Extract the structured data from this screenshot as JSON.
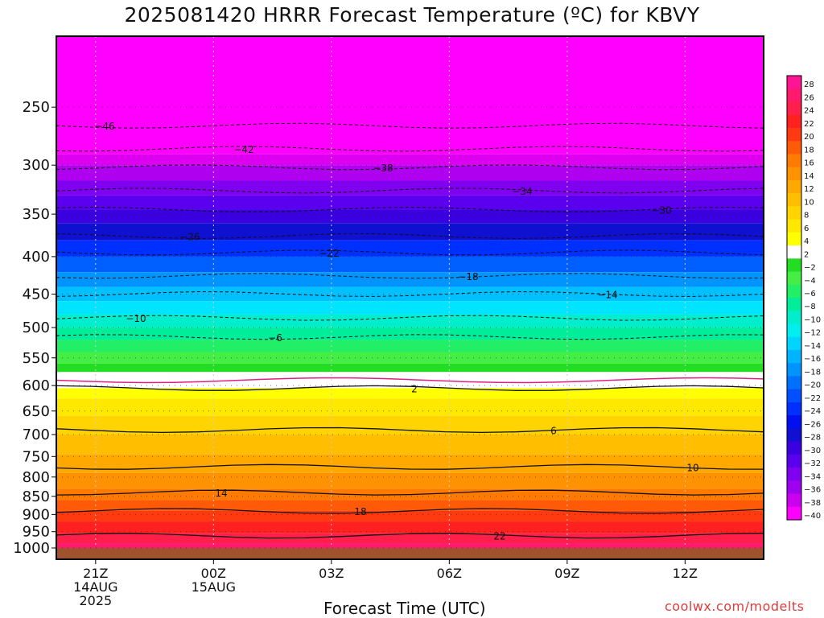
{
  "title": "2025081420 HRRR Forecast Temperature (ºC) for KBVY",
  "credit": "coolwx.com/modelts",
  "chart_data": {
    "type": "heatmap",
    "xlabel": "Forecast Time (UTC)",
    "ylabel": "",
    "y_ticks": [
      250,
      300,
      350,
      400,
      450,
      500,
      550,
      600,
      650,
      700,
      750,
      800,
      850,
      900,
      950,
      1000
    ],
    "y_range": [
      200,
      1000
    ],
    "x_ticks": [
      {
        "hour": 21,
        "lines": [
          "21Z",
          "14AUG",
          "2025"
        ]
      },
      {
        "hour": 24,
        "lines": [
          "00Z",
          "15AUG"
        ]
      },
      {
        "hour": 27,
        "lines": [
          "03Z"
        ]
      },
      {
        "hour": 30,
        "lines": [
          "06Z"
        ]
      },
      {
        "hour": 33,
        "lines": [
          "09Z"
        ]
      },
      {
        "hour": 36,
        "lines": [
          "12Z"
        ]
      }
    ],
    "x_range": [
      20,
      38
    ],
    "colorbar": [
      {
        "label": "28",
        "color": "#ff1493"
      },
      {
        "label": "26",
        "color": "#ff1a6e"
      },
      {
        "label": "24",
        "color": "#ff1f4a"
      },
      {
        "label": "22",
        "color": "#ff2020"
      },
      {
        "label": "20",
        "color": "#ff3a10"
      },
      {
        "label": "18",
        "color": "#ff5a08"
      },
      {
        "label": "16",
        "color": "#ff7a00"
      },
      {
        "label": "14",
        "color": "#ff9200"
      },
      {
        "label": "12",
        "color": "#ffa800"
      },
      {
        "label": "10",
        "color": "#ffbf00"
      },
      {
        "label": "8",
        "color": "#ffd400"
      },
      {
        "label": "6",
        "color": "#ffe800"
      },
      {
        "label": "4",
        "color": "#ffff00"
      },
      {
        "label": "2",
        "color": "#ffffff"
      },
      {
        "label": "−2",
        "color": "#22dd22"
      },
      {
        "label": "−4",
        "color": "#44ee44"
      },
      {
        "label": "−6",
        "color": "#22ee66"
      },
      {
        "label": "−8",
        "color": "#00ee99"
      },
      {
        "label": "−10",
        "color": "#00eecc"
      },
      {
        "label": "−12",
        "color": "#00eeee"
      },
      {
        "label": "−14",
        "color": "#00d4ff"
      },
      {
        "label": "−16",
        "color": "#00b4ff"
      },
      {
        "label": "−18",
        "color": "#0094ff"
      },
      {
        "label": "−20",
        "color": "#0070ff"
      },
      {
        "label": "−22",
        "color": "#0050ff"
      },
      {
        "label": "−24",
        "color": "#0030ff"
      },
      {
        "label": "−26",
        "color": "#0010f0"
      },
      {
        "label": "−28",
        "color": "#1010d0"
      },
      {
        "label": "−30",
        "color": "#3a00e0"
      },
      {
        "label": "−32",
        "color": "#5a00ee"
      },
      {
        "label": "−34",
        "color": "#8000f0"
      },
      {
        "label": "−36",
        "color": "#a000f0"
      },
      {
        "label": "−38",
        "color": "#cc00f0"
      },
      {
        "label": "−40",
        "color": "#ff00ff"
      }
    ],
    "contours": [
      {
        "label": "−46",
        "pressure": 265,
        "dashed": true
      },
      {
        "label": "−42",
        "pressure": 285,
        "dashed": true
      },
      {
        "label": "−38",
        "pressure": 302,
        "dashed": true
      },
      {
        "label": "−34",
        "pressure": 325,
        "dashed": true
      },
      {
        "label": "−30",
        "pressure": 345,
        "dashed": true
      },
      {
        "label": "−26",
        "pressure": 375,
        "dashed": true
      },
      {
        "label": "−22",
        "pressure": 395,
        "dashed": true
      },
      {
        "label": "−18",
        "pressure": 425,
        "dashed": true
      },
      {
        "label": "−14",
        "pressure": 450,
        "dashed": true
      },
      {
        "label": "−10",
        "pressure": 485,
        "dashed": true
      },
      {
        "label": "−6",
        "pressure": 515,
        "dashed": true
      },
      {
        "label": "2",
        "pressure": 605,
        "dashed": false
      },
      {
        "label": "6",
        "pressure": 690,
        "dashed": false
      },
      {
        "label": "10",
        "pressure": 775,
        "dashed": false
      },
      {
        "label": "14",
        "pressure": 840,
        "dashed": false
      },
      {
        "label": "18",
        "pressure": 890,
        "dashed": false
      },
      {
        "label": "22",
        "pressure": 962,
        "dashed": false
      }
    ],
    "freezing_level_pressure": 590,
    "bands": [
      {
        "from": 200,
        "to": 290,
        "color": "#ff00ff"
      },
      {
        "from": 290,
        "to": 300,
        "color": "#dd00f0"
      },
      {
        "from": 300,
        "to": 315,
        "color": "#b000f0"
      },
      {
        "from": 315,
        "to": 330,
        "color": "#8000f0"
      },
      {
        "from": 330,
        "to": 345,
        "color": "#5a00ee"
      },
      {
        "from": 345,
        "to": 360,
        "color": "#3a00e0"
      },
      {
        "from": 360,
        "to": 380,
        "color": "#1010d0"
      },
      {
        "from": 380,
        "to": 400,
        "color": "#0030ff"
      },
      {
        "from": 400,
        "to": 420,
        "color": "#0060ff"
      },
      {
        "from": 420,
        "to": 440,
        "color": "#0094ff"
      },
      {
        "from": 440,
        "to": 460,
        "color": "#00c0ff"
      },
      {
        "from": 460,
        "to": 480,
        "color": "#00e4ff"
      },
      {
        "from": 480,
        "to": 500,
        "color": "#00eecc"
      },
      {
        "from": 500,
        "to": 520,
        "color": "#00ee99"
      },
      {
        "from": 520,
        "to": 540,
        "color": "#22ee66"
      },
      {
        "from": 540,
        "to": 560,
        "color": "#44ee44"
      },
      {
        "from": 560,
        "to": 575,
        "color": "#22dd22"
      },
      {
        "from": 575,
        "to": 605,
        "color": "#ffffff"
      },
      {
        "from": 605,
        "to": 625,
        "color": "#ffff00"
      },
      {
        "from": 625,
        "to": 660,
        "color": "#ffe800"
      },
      {
        "from": 660,
        "to": 700,
        "color": "#ffd400"
      },
      {
        "from": 700,
        "to": 745,
        "color": "#ffbf00"
      },
      {
        "from": 745,
        "to": 790,
        "color": "#ffa800"
      },
      {
        "from": 790,
        "to": 830,
        "color": "#ff9200"
      },
      {
        "from": 830,
        "to": 860,
        "color": "#ff7a00"
      },
      {
        "from": 860,
        "to": 890,
        "color": "#ff5a08"
      },
      {
        "from": 890,
        "to": 920,
        "color": "#ff3a10"
      },
      {
        "from": 920,
        "to": 955,
        "color": "#ff2020"
      },
      {
        "from": 955,
        "to": 985,
        "color": "#ff1f4a"
      },
      {
        "from": 985,
        "to": 1000,
        "color": "#ff1a6e"
      }
    ],
    "ground_color": "#a0522d"
  }
}
